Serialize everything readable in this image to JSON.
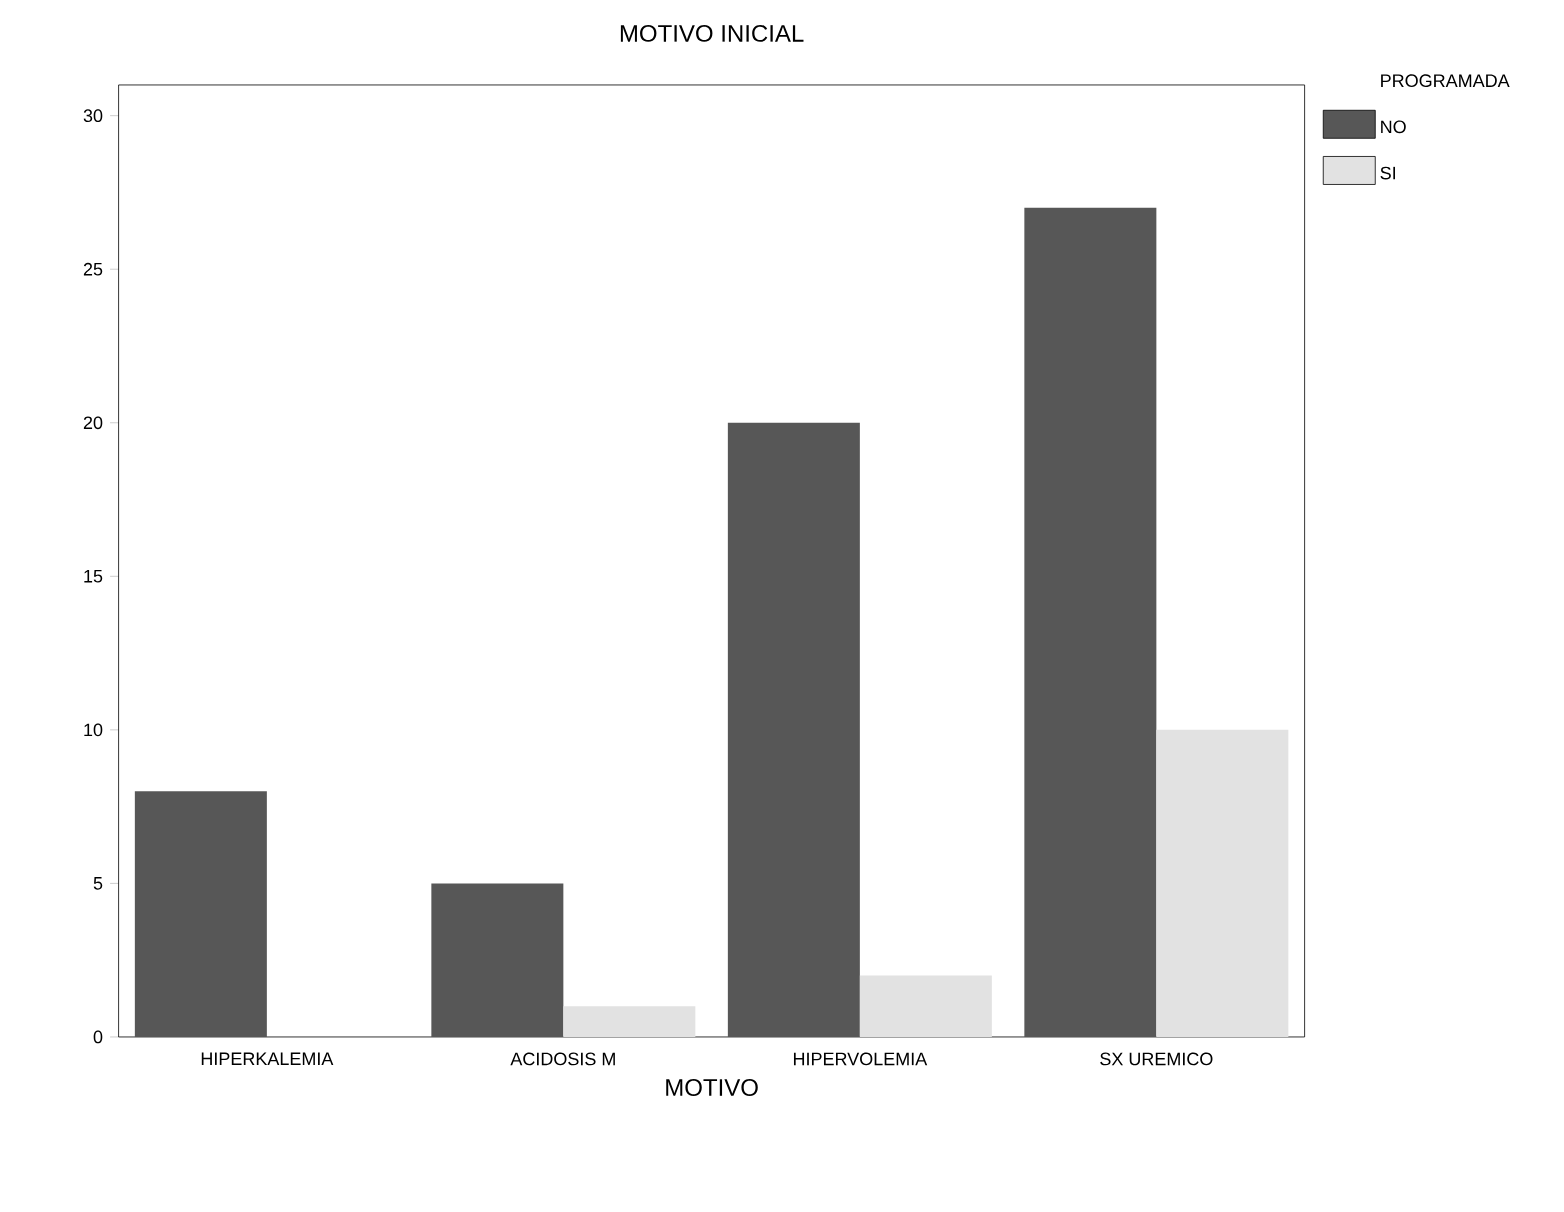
{
  "chart_data": {
    "type": "bar",
    "title": "MOTIVO INICIAL",
    "xlabel": "MOTIVO",
    "legend_title": "PROGRAMADA",
    "categories": [
      "HIPERKALEMIA",
      "ACIDOSIS M",
      "HIPERVOLEMIA",
      "SX UREMICO"
    ],
    "series": [
      {
        "name": "NO",
        "color": "#575757",
        "values": [
          8,
          5,
          20,
          27
        ]
      },
      {
        "name": "SI",
        "color": "#e2e2e2",
        "values": [
          0,
          1,
          2,
          10
        ]
      }
    ],
    "ylim": [
      0,
      31
    ],
    "yticks": [
      0,
      5,
      10,
      15,
      20,
      25,
      30
    ],
    "grid": false,
    "legend": "top right"
  }
}
